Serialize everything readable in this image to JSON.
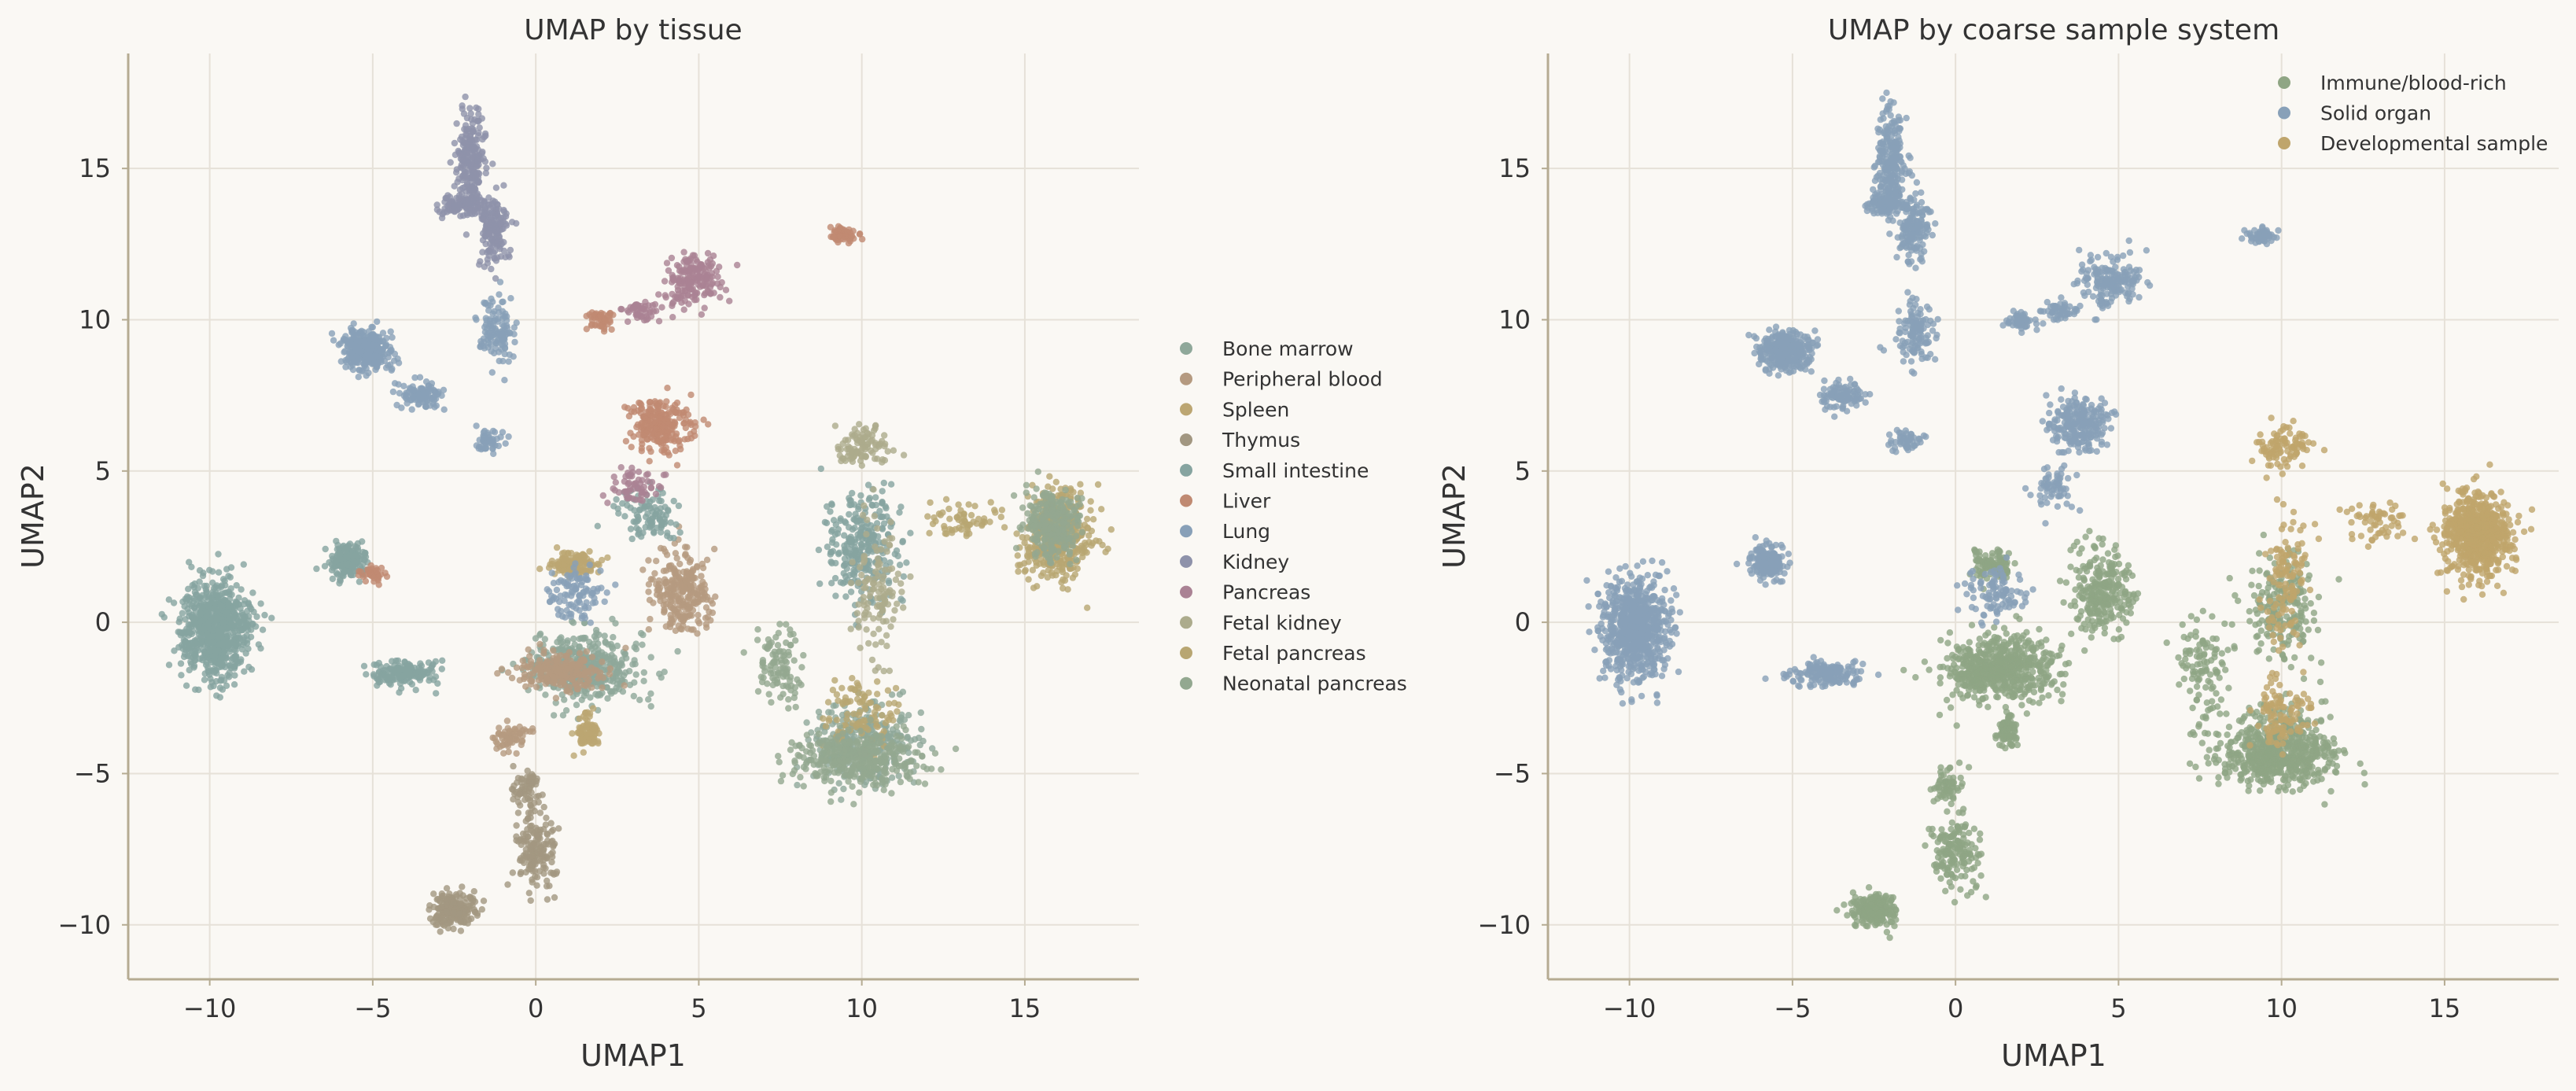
{
  "chart_data": [
    {
      "type": "scatter",
      "title": "UMAP by tissue",
      "xlabel": "UMAP1",
      "ylabel": "UMAP2",
      "xlim": [
        -12.5,
        18.5
      ],
      "ylim": [
        -11.8,
        18.8
      ],
      "xticks": [
        -10,
        -5,
        0,
        5,
        10,
        15
      ],
      "yticks": [
        -10,
        -5,
        0,
        5,
        10,
        15
      ],
      "grid": true,
      "legend_position": "right-outside",
      "series": [
        {
          "name": "Bone marrow",
          "color": "#8fa89a",
          "clusters": [
            [
              1.5,
              -1.5,
              1.5,
              1.0,
              450
            ],
            [
              10.0,
              -4.0,
              1.5,
              1.2,
              300
            ]
          ]
        },
        {
          "name": "Peripheral blood",
          "color": "#b59a80",
          "clusters": [
            [
              4.5,
              1.0,
              0.8,
              1.2,
              260
            ],
            [
              0.8,
              -1.6,
              1.2,
              0.6,
              200
            ],
            [
              -0.8,
              -3.8,
              0.5,
              0.4,
              60
            ]
          ]
        },
        {
          "name": "Spleen",
          "color": "#bca672",
          "clusters": [
            [
              1.2,
              1.9,
              0.6,
              0.4,
              120
            ],
            [
              1.6,
              -3.6,
              0.3,
              0.5,
              80
            ]
          ]
        },
        {
          "name": "Thymus",
          "color": "#a29781",
          "clusters": [
            [
              -2.5,
              -9.5,
              0.6,
              0.5,
              200
            ],
            [
              0.0,
              -7.5,
              0.6,
              1.2,
              160
            ],
            [
              -0.3,
              -5.5,
              0.4,
              0.6,
              60
            ]
          ]
        },
        {
          "name": "Small intestine",
          "color": "#86a4a0",
          "clusters": [
            [
              -9.8,
              -0.2,
              0.9,
              1.5,
              750
            ],
            [
              -5.8,
              2.0,
              0.5,
              0.5,
              180
            ],
            [
              -4.0,
              -1.7,
              1.0,
              0.4,
              160
            ],
            [
              10.0,
              2.5,
              1.0,
              1.6,
              280
            ],
            [
              3.5,
              3.5,
              0.8,
              0.8,
              100
            ]
          ]
        },
        {
          "name": "Liver",
          "color": "#c08a72",
          "clusters": [
            [
              3.8,
              6.5,
              0.8,
              0.8,
              240
            ],
            [
              9.4,
              12.8,
              0.4,
              0.2,
              60
            ],
            [
              2.0,
              10.0,
              0.4,
              0.3,
              50
            ],
            [
              -5.0,
              1.6,
              0.4,
              0.3,
              40
            ]
          ]
        },
        {
          "name": "Lung",
          "color": "#88a0b8",
          "clusters": [
            [
              -5.2,
              9.0,
              0.7,
              0.6,
              320
            ],
            [
              -3.5,
              7.5,
              0.6,
              0.4,
              100
            ],
            [
              -1.2,
              9.5,
              0.5,
              1.0,
              120
            ],
            [
              1.2,
              1.0,
              0.8,
              0.8,
              100
            ],
            [
              -1.5,
              6.0,
              0.5,
              0.3,
              50
            ]
          ]
        },
        {
          "name": "Kidney",
          "color": "#8e92aa",
          "clusters": [
            [
              -2.0,
              15.2,
              0.4,
              1.5,
              240
            ],
            [
              -1.3,
              13.0,
              0.4,
              1.0,
              150
            ],
            [
              -2.2,
              13.8,
              0.7,
              0.3,
              100
            ]
          ]
        },
        {
          "name": "Pancreas",
          "color": "#aa8294",
          "clusters": [
            [
              4.8,
              11.3,
              0.8,
              0.8,
              180
            ],
            [
              3.2,
              10.3,
              0.5,
              0.3,
              50
            ],
            [
              3.0,
              4.5,
              0.6,
              0.6,
              60
            ]
          ]
        },
        {
          "name": "Fetal kidney",
          "color": "#acab8c",
          "clusters": [
            [
              10.0,
              5.8,
              0.8,
              0.6,
              100
            ],
            [
              10.5,
              1.0,
              0.8,
              2.0,
              120
            ]
          ]
        },
        {
          "name": "Fetal pancreas",
          "color": "#b8a672",
          "clusters": [
            [
              16.0,
              2.9,
              0.9,
              1.2,
              500
            ],
            [
              13.0,
              3.3,
              0.8,
              0.6,
              60
            ],
            [
              10.0,
              -3.0,
              1.0,
              1.0,
              100
            ]
          ]
        },
        {
          "name": "Neonatal pancreas",
          "color": "#93a890",
          "clusters": [
            [
              15.8,
              3.2,
              0.8,
              1.0,
              240
            ],
            [
              9.8,
              -4.5,
              1.8,
              0.8,
              350
            ],
            [
              7.5,
              -1.5,
              0.7,
              1.2,
              100
            ]
          ]
        }
      ]
    },
    {
      "type": "scatter",
      "title": "UMAP by coarse sample system",
      "xlabel": "UMAP1",
      "ylabel": "UMAP2",
      "xlim": [
        -12.5,
        18.5
      ],
      "ylim": [
        -11.8,
        18.8
      ],
      "xticks": [
        -10,
        -5,
        0,
        5,
        10,
        15
      ],
      "yticks": [
        -10,
        -5,
        0,
        5,
        10,
        15
      ],
      "grid": true,
      "legend_position": "top-right",
      "series": [
        {
          "name": "Immune/blood-rich",
          "color": "#8fa584",
          "clusters": [
            [
              1.5,
              -1.5,
              1.5,
              1.0,
              450
            ],
            [
              4.5,
              1.0,
              0.8,
              1.2,
              260
            ],
            [
              0.8,
              -1.6,
              1.2,
              0.6,
              200
            ],
            [
              -2.5,
              -9.5,
              0.6,
              0.5,
              200
            ],
            [
              0.0,
              -7.5,
              0.6,
              1.2,
              160
            ],
            [
              -0.3,
              -5.5,
              0.4,
              0.6,
              60
            ],
            [
              1.2,
              1.9,
              0.6,
              0.4,
              120
            ],
            [
              1.6,
              -3.6,
              0.3,
              0.5,
              80
            ],
            [
              10.0,
              -4.0,
              1.5,
              1.2,
              300
            ],
            [
              9.8,
              -4.5,
              1.8,
              0.8,
              350
            ],
            [
              7.5,
              -1.5,
              0.7,
              1.2,
              100
            ],
            [
              10.0,
              0.5,
              0.9,
              1.5,
              200
            ]
          ]
        },
        {
          "name": "Solid organ",
          "color": "#88a0b8",
          "clusters": [
            [
              -9.8,
              -0.2,
              0.9,
              1.5,
              750
            ],
            [
              -5.8,
              2.0,
              0.5,
              0.5,
              180
            ],
            [
              -4.0,
              -1.7,
              1.0,
              0.4,
              160
            ],
            [
              -5.2,
              9.0,
              0.7,
              0.6,
              320
            ],
            [
              -3.5,
              7.5,
              0.6,
              0.4,
              100
            ],
            [
              -1.2,
              9.5,
              0.5,
              1.0,
              120
            ],
            [
              -2.0,
              15.2,
              0.4,
              1.5,
              240
            ],
            [
              -1.3,
              13.0,
              0.4,
              1.0,
              150
            ],
            [
              -2.2,
              13.8,
              0.7,
              0.3,
              100
            ],
            [
              4.8,
              11.3,
              0.8,
              0.8,
              180
            ],
            [
              3.2,
              10.3,
              0.5,
              0.3,
              50
            ],
            [
              3.8,
              6.5,
              0.8,
              0.8,
              240
            ],
            [
              9.4,
              12.8,
              0.4,
              0.2,
              60
            ],
            [
              2.0,
              10.0,
              0.4,
              0.3,
              50
            ],
            [
              3.0,
              4.5,
              0.6,
              0.6,
              60
            ],
            [
              1.2,
              1.0,
              0.8,
              0.8,
              100
            ],
            [
              -1.5,
              6.0,
              0.5,
              0.3,
              50
            ]
          ]
        },
        {
          "name": "Developmental sample",
          "color": "#bfa56c",
          "clusters": [
            [
              16.0,
              2.9,
              0.9,
              1.2,
              700
            ],
            [
              13.0,
              3.3,
              0.8,
              0.6,
              60
            ],
            [
              10.0,
              5.8,
              0.8,
              0.6,
              100
            ],
            [
              10.2,
              1.5,
              0.6,
              1.8,
              120
            ],
            [
              10.0,
              -3.0,
              0.8,
              1.0,
              100
            ]
          ]
        }
      ]
    }
  ]
}
